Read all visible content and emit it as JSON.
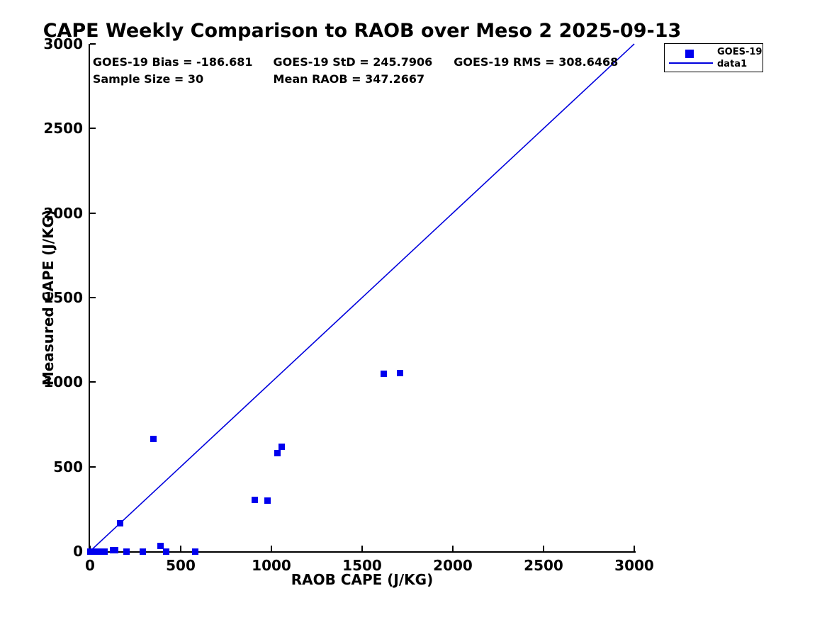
{
  "chart_data": {
    "type": "scatter",
    "title": "CAPE Weekly Comparison to RAOB over Meso 2 2025-09-13",
    "xlabel": "RAOB CAPE (J/KG)",
    "ylabel": "Measured CAPE (J/KG)",
    "xlim": [
      0,
      3000
    ],
    "ylim": [
      0,
      3000
    ],
    "x_ticks": [
      0,
      500,
      1000,
      1500,
      2000,
      2500,
      3000
    ],
    "y_ticks": [
      0,
      500,
      1000,
      1500,
      2000,
      2500,
      3000
    ],
    "grid": false,
    "axis_color": "#000000",
    "annotations": [
      {
        "text": "GOES-19 Bias = -186.681",
        "x": 15,
        "y": 2890
      },
      {
        "text": "GOES-19 StD = 245.7906",
        "x": 1010,
        "y": 2890
      },
      {
        "text": "GOES-19 RMS = 308.6468",
        "x": 2005,
        "y": 2890
      },
      {
        "text": "Sample Size = 30",
        "x": 15,
        "y": 2790
      },
      {
        "text": "Mean RAOB = 347.2667",
        "x": 1010,
        "y": 2790
      }
    ],
    "series": [
      {
        "name": "GOES-19",
        "type": "scatter",
        "marker": "square",
        "color": "#0000EE",
        "points": [
          [
            0,
            0
          ],
          [
            2,
            0
          ],
          [
            5,
            0
          ],
          [
            8,
            0
          ],
          [
            10,
            0
          ],
          [
            15,
            0
          ],
          [
            20,
            0
          ],
          [
            25,
            0
          ],
          [
            30,
            0
          ],
          [
            35,
            0
          ],
          [
            40,
            0
          ],
          [
            50,
            0
          ],
          [
            60,
            0
          ],
          [
            70,
            0
          ],
          [
            80,
            0
          ],
          [
            125,
            5
          ],
          [
            138,
            8
          ],
          [
            165,
            165
          ],
          [
            200,
            0
          ],
          [
            290,
            0
          ],
          [
            350,
            665
          ],
          [
            390,
            30
          ],
          [
            420,
            0
          ],
          [
            580,
            0
          ],
          [
            910,
            305
          ],
          [
            980,
            300
          ],
          [
            1035,
            580
          ],
          [
            1055,
            620
          ],
          [
            1620,
            1050
          ],
          [
            1710,
            1055
          ]
        ]
      },
      {
        "name": "data1",
        "type": "line",
        "color": "#0000DD",
        "points": [
          [
            0,
            0
          ],
          [
            3000,
            3000
          ]
        ]
      }
    ],
    "legend": {
      "position": "top-right-outside",
      "entries": [
        {
          "label": "GOES-19",
          "swatch": "marker"
        },
        {
          "label": "data1",
          "swatch": "line"
        }
      ]
    }
  }
}
